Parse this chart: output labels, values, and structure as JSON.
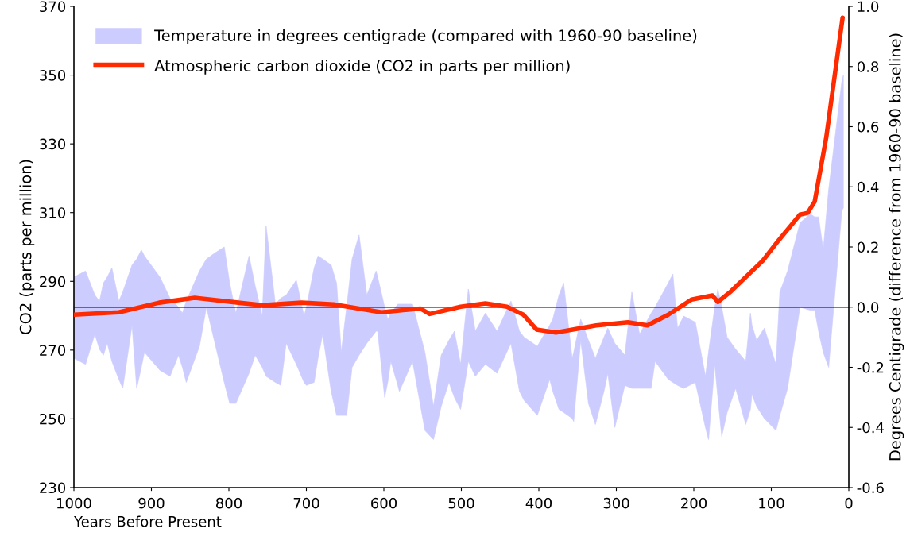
{
  "chart_data": {
    "type": "line",
    "xlabel": "Years Before Present",
    "ylabel": "CO2 (parts per million)",
    "y2label": "Degrees Centigrade (difference from 1960-90 baseline)",
    "xlim": [
      1000,
      0
    ],
    "xticks": [
      1000,
      900,
      800,
      700,
      600,
      500,
      400,
      300,
      200,
      100,
      0
    ],
    "ylim": [
      230,
      370
    ],
    "yticks": [
      230,
      250,
      270,
      290,
      310,
      330,
      350,
      370
    ],
    "y2lim": [
      -0.6,
      1.0
    ],
    "y2ticks": [
      {
        "value": -0.6,
        "label": "-0.6"
      },
      {
        "value": -0.4,
        "label": "-0.4"
      },
      {
        "value": -0.2,
        "label": "-0.2"
      },
      {
        "value": 0,
        "label": "0.0"
      },
      {
        "value": 0.2,
        "label": "0.2"
      },
      {
        "value": 0.4,
        "label": "0.4"
      },
      {
        "value": 0.6,
        "label": "0.6"
      },
      {
        "value": 0.8,
        "label": "0.8"
      },
      {
        "value": 1.0,
        "label": "1.0"
      }
    ],
    "grid": false,
    "legend": "top left",
    "marker": "none",
    "line_style": "solid",
    "ref_lines": [
      {
        "axis": "y2",
        "value": 0,
        "color": "#000000"
      }
    ],
    "series": [
      {
        "name": "Temperature in degrees centigrade (compared with 1960-90 baseline)",
        "type": "area",
        "axis": "y2",
        "color": "#ccccff",
        "x": [
          1000,
          985,
          973,
          967,
          962,
          957,
          951,
          942,
          937,
          925,
          919,
          913,
          909,
          889,
          876,
          865,
          860,
          855,
          838,
          829,
          818,
          806,
          799,
          791,
          774,
          766,
          757,
          752,
          740,
          733,
          726,
          713,
          703,
          700,
          690,
          685,
          679,
          668,
          661,
          655,
          648,
          641,
          632,
          627,
          622,
          610,
          608,
          599,
          595,
          591,
          582,
          580,
          563,
          547,
          536,
          526,
          516,
          509,
          501,
          491,
          482,
          469,
          454,
          436,
          425,
          419,
          402,
          386,
          382,
          374,
          368,
          357,
          355,
          346,
          336,
          327,
          316,
          311,
          302,
          289,
          280,
          270,
          255,
          250,
          233,
          227,
          221,
          213,
          198,
          185,
          181,
          173,
          169,
          164,
          157,
          146,
          133,
          127,
          125,
          119,
          109,
          94,
          89,
          79,
          63,
          50,
          44,
          39,
          33,
          26,
          9,
          7
        ],
        "upper": [
          0.1,
          0.12,
          0.04,
          0.02,
          0.08,
          0.1,
          0.13,
          0.02,
          0.05,
          0.14,
          0.16,
          0.19,
          0.17,
          0.1,
          0.03,
          0.0,
          -0.02,
          0.02,
          0.12,
          0.16,
          0.18,
          0.2,
          0.08,
          -0.02,
          0.17,
          0.07,
          -0.03,
          0.27,
          0.01,
          0.03,
          0.04,
          0.09,
          -0.03,
          0.0,
          0.13,
          0.17,
          0.16,
          0.14,
          0.08,
          -0.15,
          0.0,
          0.16,
          0.24,
          0.14,
          0.04,
          0.12,
          0.1,
          0.0,
          -0.04,
          -0.02,
          0.01,
          0.01,
          0.01,
          -0.15,
          -0.33,
          -0.16,
          -0.11,
          -0.08,
          -0.19,
          0.06,
          -0.08,
          -0.02,
          -0.08,
          0.02,
          -0.08,
          -0.1,
          -0.13,
          -0.06,
          -0.04,
          0.04,
          0.08,
          -0.17,
          -0.15,
          -0.04,
          -0.11,
          -0.17,
          -0.1,
          -0.07,
          -0.12,
          -0.16,
          0.05,
          -0.09,
          -0.02,
          0.0,
          0.08,
          0.11,
          -0.07,
          -0.03,
          -0.05,
          -0.23,
          -0.15,
          0.0,
          0.06,
          0.0,
          -0.1,
          -0.14,
          -0.18,
          -0.02,
          -0.06,
          -0.11,
          -0.07,
          -0.19,
          0.05,
          0.12,
          0.28,
          0.31,
          0.3,
          0.3,
          0.19,
          0.39,
          0.75,
          0.77
        ],
        "values": [
          null,
          null,
          null,
          null,
          null,
          null,
          null,
          null,
          null,
          null,
          null,
          null,
          null,
          null,
          null,
          null,
          null,
          null,
          null,
          null,
          null,
          null,
          null,
          null,
          null,
          null,
          null,
          null,
          null,
          null,
          null,
          null,
          null,
          null,
          null,
          null,
          null,
          null,
          null,
          null,
          null,
          null,
          null,
          null,
          null,
          null,
          null,
          null,
          null,
          null,
          null,
          null,
          null,
          null,
          null,
          null,
          null,
          null,
          null,
          null,
          null,
          null,
          null,
          null,
          null,
          null,
          null,
          null,
          null,
          null,
          null,
          null,
          null,
          null,
          null,
          null,
          null,
          null,
          null,
          null,
          null,
          null,
          null,
          null,
          null,
          null,
          null,
          null,
          null,
          null,
          null,
          null,
          null,
          null,
          null,
          null,
          null,
          null,
          null,
          null,
          null,
          null,
          null,
          null,
          null,
          null,
          null,
          null,
          null,
          null,
          null,
          null
        ],
        "lower": [
          -0.17,
          -0.19,
          -0.09,
          -0.14,
          -0.16,
          -0.12,
          -0.18,
          -0.24,
          -0.27,
          -0.06,
          -0.27,
          -0.2,
          -0.15,
          -0.21,
          -0.23,
          -0.16,
          -0.2,
          -0.25,
          -0.13,
          0.0,
          -0.12,
          -0.25,
          -0.32,
          -0.32,
          -0.22,
          -0.16,
          -0.2,
          -0.23,
          -0.25,
          -0.26,
          -0.12,
          -0.19,
          -0.25,
          -0.26,
          -0.25,
          -0.17,
          -0.09,
          -0.28,
          -0.36,
          -0.36,
          -0.36,
          -0.2,
          -0.16,
          -0.14,
          -0.12,
          -0.08,
          -0.08,
          -0.3,
          -0.25,
          -0.18,
          -0.26,
          -0.28,
          -0.18,
          -0.41,
          -0.44,
          -0.33,
          -0.25,
          -0.3,
          -0.34,
          -0.18,
          -0.23,
          -0.19,
          -0.22,
          -0.12,
          -0.28,
          -0.31,
          -0.36,
          -0.24,
          -0.28,
          -0.34,
          -0.35,
          -0.37,
          -0.38,
          -0.11,
          -0.32,
          -0.39,
          -0.28,
          -0.22,
          -0.4,
          -0.26,
          -0.27,
          -0.27,
          -0.27,
          -0.18,
          -0.24,
          -0.25,
          -0.26,
          -0.27,
          -0.25,
          -0.4,
          -0.44,
          -0.19,
          -0.3,
          -0.43,
          -0.35,
          -0.27,
          -0.39,
          -0.34,
          -0.29,
          -0.33,
          -0.37,
          -0.41,
          -0.36,
          -0.27,
          0.0,
          -0.01,
          -0.01,
          -0.08,
          -0.15,
          -0.2,
          0.32,
          0.33
        ]
      },
      {
        "name": "Atmospheric carbon dioxide (CO2 in parts per million)",
        "color": "#ff2a00",
        "x": [
          1000,
          942,
          890,
          844,
          788,
          757,
          706,
          665,
          603,
          553,
          541,
          501,
          469,
          441,
          420,
          403,
          378,
          326,
          285,
          260,
          233,
          203,
          176,
          169,
          152,
          111,
          90,
          63,
          53,
          44,
          29,
          8
        ],
        "values": [
          280.3,
          281,
          283.8,
          285.2,
          283.8,
          283.1,
          283.8,
          283.3,
          281,
          282.1,
          280.5,
          282.6,
          283.6,
          282.6,
          280.3,
          276,
          275.1,
          277.2,
          278.1,
          277.2,
          280.3,
          284.7,
          285.9,
          284,
          287.1,
          296,
          302.1,
          309.4,
          309.9,
          313.2,
          332,
          366.7
        ]
      }
    ]
  }
}
